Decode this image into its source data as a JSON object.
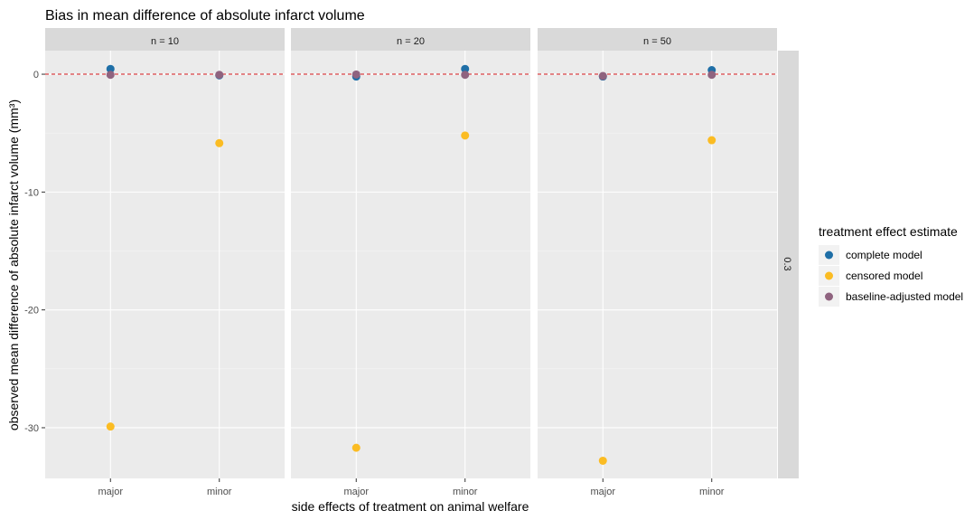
{
  "chart_data": {
    "type": "scatter",
    "title": "Bias in mean difference of absolute infarct volume",
    "xlabel": "side effects of treatment on animal welfare",
    "ylabel": "observed mean difference of absolute infarct volume (mm³)",
    "categories": [
      "major",
      "minor"
    ],
    "ylim": [
      -34.3,
      2.0
    ],
    "yticks": [
      0,
      -10,
      -20,
      -30
    ],
    "reference_line": {
      "y": 0,
      "style": "dashed",
      "color": "#d7191c"
    },
    "row_facet_label": "0.3",
    "panels": [
      {
        "label": "n = 10",
        "series": [
          {
            "name": "complete model",
            "values": [
              0.45,
              -0.1
            ]
          },
          {
            "name": "censored model",
            "values": [
              -29.9,
              -5.85
            ]
          },
          {
            "name": "baseline-adjusted model",
            "values": [
              -0.05,
              -0.05
            ]
          }
        ]
      },
      {
        "label": "n = 20",
        "series": [
          {
            "name": "complete model",
            "values": [
              -0.2,
              0.45
            ]
          },
          {
            "name": "censored model",
            "values": [
              -31.7,
              -5.2
            ]
          },
          {
            "name": "baseline-adjusted model",
            "values": [
              -0.02,
              -0.05
            ]
          }
        ]
      },
      {
        "label": "n = 50",
        "series": [
          {
            "name": "complete model",
            "values": [
              -0.2,
              0.35
            ]
          },
          {
            "name": "censored model",
            "values": [
              -32.8,
              -5.6
            ]
          },
          {
            "name": "baseline-adjusted model",
            "values": [
              -0.15,
              -0.05
            ]
          }
        ]
      }
    ],
    "legend": {
      "title": "treatment effect estimate",
      "position": "right",
      "entries": [
        "complete model",
        "censored model",
        "baseline-adjusted model"
      ]
    },
    "colors": {
      "complete model": "#1f6fa7",
      "censored model": "#fbbc23",
      "baseline-adjusted model": "#8f637f"
    },
    "panel_background": "#ebebeb",
    "strip_background": "#d9d9d9",
    "grid": true
  }
}
